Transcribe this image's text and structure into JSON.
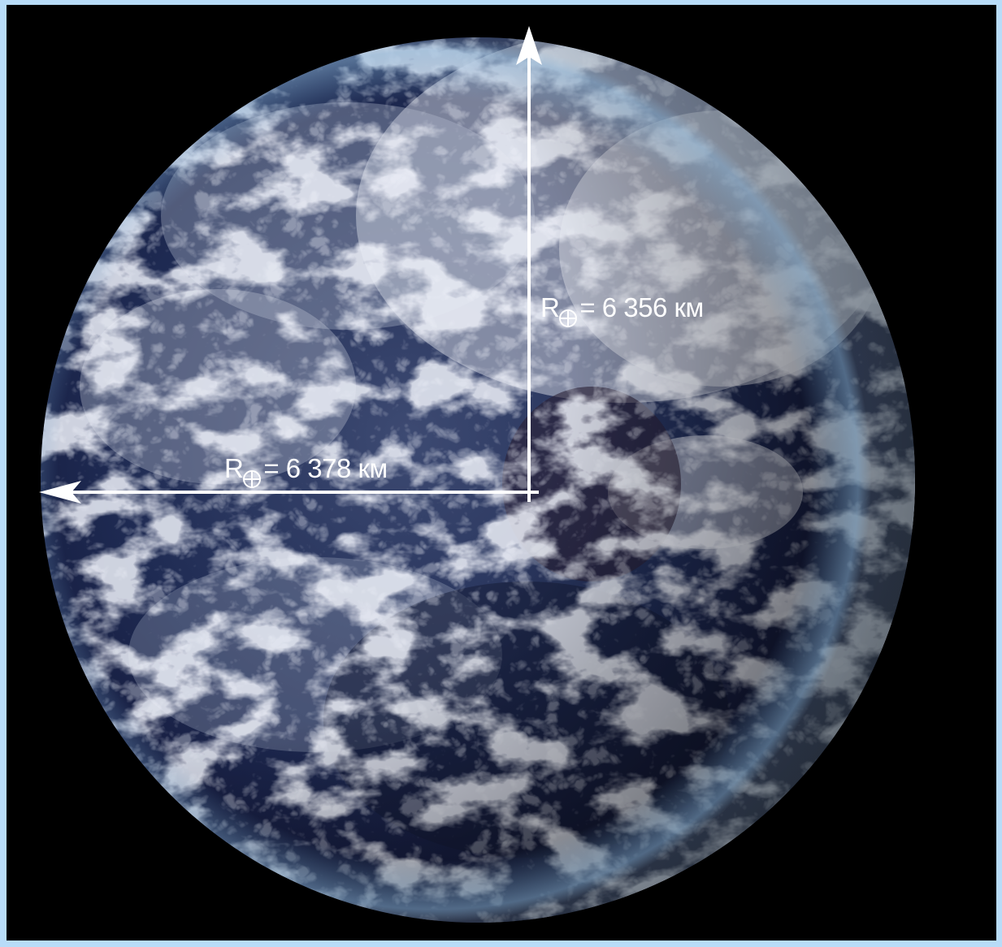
{
  "image": {
    "subject": "Earth photographed from space",
    "background_color": "#000000",
    "frame_color": "#b8dcf8",
    "arrow_color": "#ffffff"
  },
  "annotations": {
    "polar_radius": {
      "symbol": "R",
      "subscript_icon": "earth-symbol-icon",
      "text": "= 6 356 км"
    },
    "equatorial_radius": {
      "symbol": "R",
      "subscript_icon": "earth-symbol-icon",
      "text": "= 6 378 км"
    }
  }
}
